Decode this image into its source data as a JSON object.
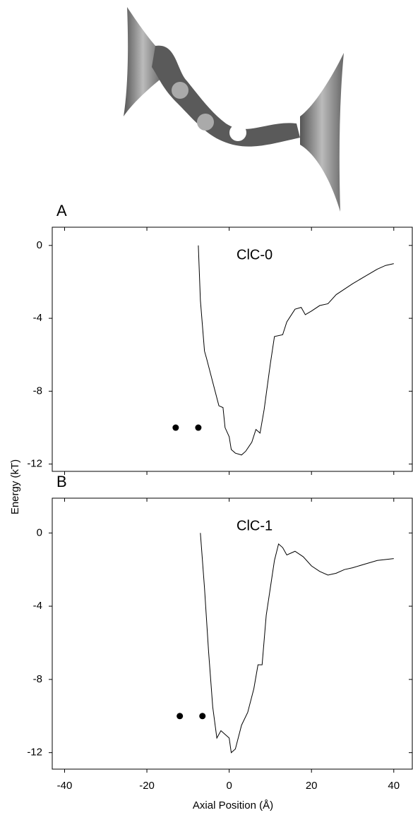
{
  "ylabel": "Energy  (kT)",
  "xlabel": "Axial Position (Å)",
  "chart_data": [
    {
      "type": "line",
      "panel_label": "A",
      "annotation": "ClC-0",
      "color": "#000000",
      "xlim": [
        -43,
        44.5
      ],
      "ylim": [
        -12.4,
        1
      ],
      "xticks": [
        -40,
        -20,
        0,
        20,
        40
      ],
      "yticks": [
        0,
        -4,
        -8,
        -12
      ],
      "x": [
        -7.5,
        -7,
        -6,
        -5.5,
        -4,
        -2.5,
        -1.5,
        -1,
        0,
        0.5,
        1.5,
        3,
        4,
        5.5,
        6.5,
        7.5,
        8.5,
        10,
        11,
        13,
        14,
        16,
        17.5,
        18.5,
        20,
        22,
        24,
        26,
        28,
        30,
        33,
        36,
        38,
        40
      ],
      "values": [
        0,
        -3,
        -5.8,
        -6.2,
        -7.5,
        -8.8,
        -8.9,
        -10,
        -10.5,
        -11.2,
        -11.4,
        -11.5,
        -11.3,
        -10.8,
        -10.1,
        -10.3,
        -9,
        -6.5,
        -5,
        -4.9,
        -4.2,
        -3.5,
        -3.4,
        -3.8,
        -3.6,
        -3.3,
        -3.2,
        -2.7,
        -2.4,
        -2.1,
        -1.7,
        -1.3,
        -1.1,
        -1.0
      ],
      "points": {
        "x": [
          -13,
          -7.5
        ],
        "values": [
          -10,
          -10
        ]
      }
    },
    {
      "type": "line",
      "panel_label": "B",
      "annotation": "ClC-1",
      "color": "#000000",
      "xlim": [
        -43,
        44.5
      ],
      "ylim": [
        -12.9,
        1.9
      ],
      "xticks": [
        -40,
        -20,
        0,
        20,
        40
      ],
      "yticks": [
        0,
        -4,
        -8,
        -12
      ],
      "x": [
        -7,
        -6,
        -5,
        -4,
        -3,
        -2,
        -1,
        0,
        0.5,
        1.5,
        3,
        4.5,
        6,
        7,
        8,
        9,
        10,
        11,
        12,
        13,
        14,
        16,
        18,
        20,
        22,
        24,
        26,
        28,
        30,
        33,
        36,
        40
      ],
      "values": [
        0,
        -3,
        -6.5,
        -9.5,
        -11.2,
        -10.8,
        -11,
        -11.2,
        -12,
        -11.8,
        -10.5,
        -9.8,
        -8.5,
        -7.2,
        -7.2,
        -4.5,
        -3,
        -1.5,
        -0.6,
        -0.8,
        -1.2,
        -1,
        -1.3,
        -1.8,
        -2.1,
        -2.3,
        -2.2,
        -2,
        -1.9,
        -1.7,
        -1.5,
        -1.4
      ],
      "points": {
        "x": [
          -12,
          -6.5
        ],
        "values": [
          -10,
          -10
        ]
      }
    }
  ]
}
